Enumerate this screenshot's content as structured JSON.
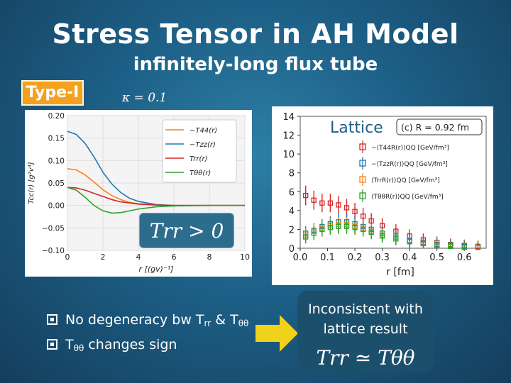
{
  "slide": {
    "title": "Stress Tensor in AH Model",
    "subtitle": "infinitely-long flux tube",
    "type_tag": "Type-I",
    "kappa": "κ = 0.1",
    "trr_label": "Trr > 0",
    "bullets": [
      {
        "pre": "No degeneracy bw T",
        "sub1": "rr",
        "mid": " & T",
        "sub2": "θθ",
        "post": ""
      },
      {
        "pre": "T",
        "sub1": "θθ",
        "mid": " changes sign",
        "sub2": "",
        "post": ""
      }
    ],
    "result_text_1": "Inconsistent with",
    "result_text_2": "lattice result",
    "result_eq": "Trr ≃ Tθθ",
    "colors": {
      "accent": "#f3a11e",
      "arrow": "#f0d21a",
      "bg": "#1d5f86"
    }
  },
  "chart_data": [
    {
      "type": "line",
      "xlabel": "r [(gv)⁻¹]",
      "ylabel": "Tcc(r) [g²v⁴]",
      "xlim": [
        0,
        10
      ],
      "ylim": [
        -0.1,
        0.2
      ],
      "xticks": [
        "0",
        "2",
        "4",
        "6",
        "8",
        "10"
      ],
      "yticks": [
        "−0.10",
        "−0.05",
        "0.00",
        "0.05",
        "0.10",
        "0.15",
        "0.20"
      ],
      "legend_position": "top-right",
      "grid": true,
      "series": [
        {
          "name": "−T44(r)",
          "color": "#ff7f0e",
          "x": [
            0,
            0.5,
            1,
            1.5,
            2,
            2.5,
            3,
            3.5,
            4,
            5,
            6,
            8,
            10
          ],
          "y": [
            0.082,
            0.079,
            0.068,
            0.052,
            0.035,
            0.022,
            0.013,
            0.007,
            0.004,
            0.001,
            0,
            0,
            0
          ]
        },
        {
          "name": "−Tzz(r)",
          "color": "#1f77b4",
          "x": [
            0,
            0.5,
            1,
            1.5,
            2,
            2.5,
            3,
            3.5,
            4,
            5,
            6,
            8,
            10
          ],
          "y": [
            0.165,
            0.158,
            0.138,
            0.108,
            0.074,
            0.048,
            0.029,
            0.016,
            0.009,
            0.002,
            0,
            0,
            0
          ]
        },
        {
          "name": "Trr(r)",
          "color": "#d62728",
          "x": [
            0,
            0.5,
            1,
            1.5,
            2,
            2.5,
            3,
            4,
            5,
            6,
            8,
            10
          ],
          "y": [
            0.04,
            0.039,
            0.034,
            0.027,
            0.02,
            0.013,
            0.008,
            0.003,
            0.001,
            0,
            0,
            0
          ]
        },
        {
          "name": "Tθθ(r)",
          "color": "#2ca02c",
          "x": [
            0,
            0.5,
            1,
            1.5,
            2,
            2.5,
            3,
            3.5,
            4,
            5,
            6,
            8,
            10
          ],
          "y": [
            0.04,
            0.034,
            0.018,
            0.0,
            -0.012,
            -0.017,
            -0.016,
            -0.012,
            -0.008,
            -0.003,
            -0.001,
            0,
            0
          ]
        }
      ]
    },
    {
      "type": "scatter",
      "xlabel": "r [fm]",
      "xlim": [
        0,
        0.68
      ],
      "ylim": [
        0,
        14
      ],
      "xticks": [
        "0.0",
        "0.1",
        "0.2",
        "0.3",
        "0.4",
        "0.5",
        "0.6"
      ],
      "yticks": [
        "0",
        "2",
        "4",
        "6",
        "8",
        "10",
        "12",
        "14"
      ],
      "panel_label": "Lattice",
      "annotation": "(c) R = 0.92 fm",
      "legend_position": "top-right",
      "series": [
        {
          "name": "−⟨T44R(r)⟩QQ [GeV/fm³]",
          "color": "#d62728",
          "x": [
            0.02,
            0.05,
            0.08,
            0.11,
            0.14,
            0.17,
            0.2,
            0.23,
            0.26,
            0.3,
            0.35,
            0.4,
            0.45,
            0.5,
            0.55,
            0.6,
            0.65
          ],
          "y": [
            5.6,
            5.1,
            4.8,
            4.8,
            4.6,
            4.3,
            3.9,
            3.4,
            2.9,
            2.4,
            1.8,
            1.3,
            0.9,
            0.6,
            0.4,
            0.3,
            0.2
          ]
        },
        {
          "name": "−⟨TzzR(r)⟩QQ [GeV/fm³]",
          "color": "#1f77b4",
          "x": [
            0.02,
            0.05,
            0.08,
            0.11,
            0.14,
            0.17,
            0.2,
            0.23,
            0.26,
            0.3,
            0.35,
            0.4,
            0.45,
            0.5,
            0.55,
            0.6,
            0.65
          ],
          "y": [
            1.6,
            1.9,
            2.3,
            2.6,
            2.8,
            2.8,
            2.6,
            2.3,
            2.0,
            1.6,
            1.2,
            0.8,
            0.6,
            0.4,
            0.3,
            0.2,
            0.1
          ]
        },
        {
          "name": "⟨TrrR(r)⟩QQ [GeV/fm³]",
          "color": "#ff7f0e",
          "x": [
            0.02,
            0.05,
            0.08,
            0.11,
            0.14,
            0.17,
            0.2,
            0.23,
            0.26,
            0.3,
            0.35,
            0.4,
            0.45,
            0.5,
            0.55,
            0.6,
            0.65
          ],
          "y": [
            1.4,
            1.8,
            2.1,
            2.4,
            2.5,
            2.5,
            2.3,
            2.1,
            1.8,
            1.4,
            1.0,
            0.7,
            0.5,
            0.3,
            0.2,
            0.1,
            0.1
          ]
        },
        {
          "name": "⟨TθθR(r)⟩QQ [GeV/fm³]",
          "color": "#2ca02c",
          "x": [
            0.02,
            0.05,
            0.08,
            0.11,
            0.14,
            0.17,
            0.2,
            0.23,
            0.26,
            0.3,
            0.35,
            0.4,
            0.45,
            0.5,
            0.55,
            0.6,
            0.65
          ],
          "y": [
            1.2,
            1.6,
            2.0,
            2.2,
            2.3,
            2.3,
            2.2,
            2.0,
            1.7,
            1.3,
            1.0,
            0.7,
            0.5,
            0.3,
            0.2,
            0.1,
            0.1
          ]
        }
      ]
    }
  ]
}
